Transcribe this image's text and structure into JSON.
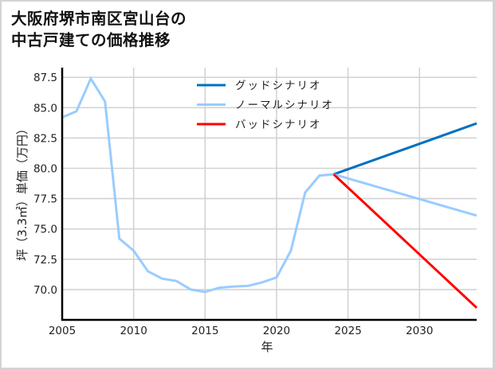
{
  "title_lines": [
    "大阪府堺市南区宮山台の",
    "中古戸建ての価格推移"
  ],
  "chart_data": {
    "type": "line",
    "title": "大阪府堺市南区宮山台の中古戸建ての価格推移",
    "xlabel": "年",
    "ylabel": "坪（3.3㎡）単価（万円）",
    "xlim": [
      2005,
      2034
    ],
    "ylim": [
      67.5,
      88.3
    ],
    "xticks": [
      2005,
      2010,
      2015,
      2020,
      2025,
      2030
    ],
    "yticks": [
      70.0,
      72.5,
      75.0,
      77.5,
      80.0,
      82.5,
      85.0,
      87.5
    ],
    "ytick_labels": [
      "70.0",
      "72.5",
      "75.0",
      "77.5",
      "80.0",
      "82.5",
      "85.0",
      "87.5"
    ],
    "grid": true,
    "legend_position": "upper center",
    "series": [
      {
        "name": "ノーマルシナリオ",
        "role": "historical",
        "color": "#99ccff",
        "x": [
          2005,
          2006,
          2007,
          2008,
          2009,
          2010,
          2011,
          2012,
          2013,
          2014,
          2015,
          2016,
          2017,
          2018,
          2019,
          2020,
          2021,
          2022,
          2023,
          2024
        ],
        "y": [
          84.2,
          84.7,
          87.4,
          85.5,
          74.2,
          73.2,
          71.5,
          70.9,
          70.7,
          70.0,
          69.8,
          70.15,
          70.25,
          70.3,
          70.6,
          71.0,
          73.2,
          78.0,
          79.4,
          79.5
        ]
      },
      {
        "name": "グッドシナリオ",
        "color": "#0070c0",
        "x": [
          2024,
          2034
        ],
        "y": [
          79.5,
          83.7
        ]
      },
      {
        "name": "ノーマルシナリオ",
        "color": "#99ccff",
        "x": [
          2024,
          2034
        ],
        "y": [
          79.5,
          76.1
        ]
      },
      {
        "name": "バッドシナリオ",
        "color": "#ff0000",
        "x": [
          2024,
          2034
        ],
        "y": [
          79.5,
          68.5
        ]
      }
    ],
    "legend": [
      {
        "label": "グッドシナリオ",
        "color": "#0070c0"
      },
      {
        "label": "ノーマルシナリオ",
        "color": "#99ccff"
      },
      {
        "label": "バッドシナリオ",
        "color": "#ff0000"
      }
    ]
  }
}
